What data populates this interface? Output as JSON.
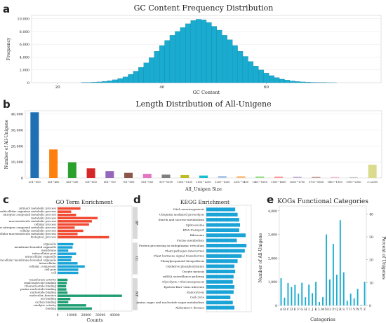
{
  "panels": {
    "a": "a",
    "b": "b",
    "c": "c",
    "d": "d",
    "e": "e"
  },
  "chart_data": [
    {
      "id": "gc",
      "type": "bar",
      "title": "GC Content Frequency Distribution",
      "xlabel": "GC Content",
      "ylabel": "Frequency",
      "xlim": [
        15,
        82
      ],
      "ylim": [
        0,
        10500
      ],
      "xticks": [
        "20",
        "40",
        "60"
      ],
      "yticks": [
        "0",
        "2,000",
        "4,000",
        "6,000",
        "8,000",
        "10,000"
      ],
      "color": "#1aacd0",
      "x": [
        25,
        26,
        27,
        28,
        29,
        30,
        31,
        32,
        33,
        34,
        35,
        36,
        37,
        38,
        39,
        40,
        41,
        42,
        43,
        44,
        45,
        46,
        47,
        48,
        49,
        50,
        51,
        52,
        53,
        54,
        55,
        56,
        57,
        58,
        59,
        60,
        61,
        62,
        63,
        64,
        65,
        66,
        67,
        68,
        69,
        70,
        71,
        72,
        73
      ],
      "values": [
        20,
        40,
        70,
        120,
        200,
        300,
        450,
        650,
        900,
        1300,
        1800,
        2400,
        3100,
        3900,
        4900,
        5800,
        6600,
        7400,
        8000,
        8600,
        9200,
        9700,
        9900,
        9800,
        9400,
        8800,
        8200,
        7400,
        6700,
        5800,
        4900,
        4100,
        3300,
        2600,
        2000,
        1500,
        1100,
        800,
        550,
        400,
        270,
        180,
        120,
        80,
        50,
        30,
        20,
        10,
        5
      ]
    },
    {
      "id": "length",
      "type": "bar",
      "title": "Length Distribution of All-Unigene",
      "xlabel": "All_Unigen Size",
      "ylabel": "Number of All-Unigene",
      "ylim": [
        0,
        42000
      ],
      "yticks": [
        "0",
        "10,000",
        "20,000",
        "30,000",
        "40,000"
      ],
      "categories": [
        "201~300",
        "301~400",
        "401~500",
        "501~600",
        "601~700",
        "701~800",
        "801~900",
        "901~1000",
        "1001~1100",
        "1101~1200",
        "1201~1300",
        "1301~1400",
        "1401~1500",
        "1501~1600",
        "1601~1700",
        "1701~1800",
        "1801~1900",
        "1901~2000",
        ">=2001"
      ],
      "values": [
        41000,
        17800,
        9800,
        6000,
        4300,
        3200,
        2600,
        2100,
        1800,
        1500,
        1300,
        1100,
        950,
        850,
        750,
        650,
        560,
        520,
        8300
      ],
      "colors": [
        "#1f6fb4",
        "#ff7f0e",
        "#2ca02c",
        "#d62728",
        "#9467bd",
        "#8c564b",
        "#e377c2",
        "#7f7f7f",
        "#bcbd22",
        "#17becf",
        "#aec7e8",
        "#ffbb78",
        "#98df8a",
        "#ff9896",
        "#c5b0d5",
        "#c49c94",
        "#f7b6d2",
        "#c7c7c7",
        "#dbdb8d"
      ]
    },
    {
      "id": "go",
      "type": "bar",
      "orientation": "horizontal",
      "title": "GO Term Enrichment",
      "xlabel": "Counts",
      "xlim": [
        0,
        52000
      ],
      "xticks": [
        "0",
        "10000",
        "20000",
        "30000",
        "40000"
      ],
      "xtick_values": [
        0,
        10000,
        20000,
        30000,
        40000
      ],
      "groups": [
        {
          "name": "BP",
          "color": "#f04a32",
          "terms": [
            {
              "label": "primary metabolic process",
              "value": 16000
            },
            {
              "label": "multicellular organism metabolic process",
              "value": 9500
            },
            {
              "label": "nitrogen compound metabolic process",
              "value": 13000
            },
            {
              "label": "metabolic process",
              "value": 28000
            },
            {
              "label": "macromolecule metabolic process",
              "value": 24000
            },
            {
              "label": "cellular process",
              "value": 22000
            },
            {
              "label": "cellular nitrogen compound metabolic process",
              "value": 12000
            },
            {
              "label": "cellular metabolic process",
              "value": 18000
            },
            {
              "label": "cellular macromolecule metabolic process",
              "value": 14000
            },
            {
              "label": "biological_process",
              "value": 36000
            }
          ]
        },
        {
          "name": "CC",
          "color": "#1aa3d6",
          "terms": [
            {
              "label": "organelle",
              "value": 11000
            },
            {
              "label": "membrane-bounded organelle",
              "value": 10500
            },
            {
              "label": "membrane",
              "value": 7500
            },
            {
              "label": "intracellular part",
              "value": 13000
            },
            {
              "label": "intracellular organelle",
              "value": 10000
            },
            {
              "label": "intracellular membrane-bounded organelle",
              "value": 9500
            },
            {
              "label": "intracellular",
              "value": 14000
            },
            {
              "label": "cellular_component",
              "value": 19000
            },
            {
              "label": "cell part",
              "value": 14500
            },
            {
              "label": "cell",
              "value": 14500
            }
          ]
        },
        {
          "name": "MF",
          "color": "#1f9e73",
          "terms": [
            {
              "label": "transferase activity",
              "value": 7000
            },
            {
              "label": "small molecule binding",
              "value": 6500
            },
            {
              "label": "ribonucleotide binding",
              "value": 6000
            },
            {
              "label": "purine nucleotide binding",
              "value": 6200
            },
            {
              "label": "nucleotide binding",
              "value": 7000
            },
            {
              "label": "molecular_function",
              "value": 45000
            },
            {
              "label": "ion binding",
              "value": 9000
            },
            {
              "label": "carbon binding",
              "value": 7500
            },
            {
              "label": "catalytic activity",
              "value": 20000
            },
            {
              "label": "binding",
              "value": 24000
            }
          ]
        }
      ]
    },
    {
      "id": "kegg",
      "type": "bar",
      "orientation": "horizontal",
      "title": "KEGG Enrichment",
      "xlim": [
        0,
        1.12
      ],
      "color": "#1aa3d6",
      "categories": [
        "Vital cancrinogenesis",
        "Ubiquitin mediated proteolysis",
        "Starch and sucrose metabolism",
        "Spliceosome",
        "RNA transport",
        "Ribosome",
        "Purine metabolism",
        "Protein processing in endoplasmic reticulum",
        "Plant-pathogen interaction",
        "Plant hormone signal transduction",
        "Phenylpropanoid biosynthesis",
        "Oxidative phosphorylation",
        "Oocyte meiosis",
        "mRNA surveillance pathway",
        "Glycolysis / Gluconeogenesis",
        "Epstein-Barr virus infection",
        "Endocytosis",
        "Cell cycle",
        "Amino sugar and nucleotide sugar metabolism",
        "Alzheimer's disease"
      ],
      "values": [
        0.72,
        0.78,
        0.82,
        0.84,
        0.82,
        0.98,
        0.76,
        1.0,
        0.96,
        0.88,
        0.78,
        0.7,
        0.72,
        0.68,
        0.66,
        0.7,
        0.68,
        0.6,
        0.66,
        0.7
      ]
    },
    {
      "id": "kog",
      "type": "bar",
      "title": "KOGs Functional Categories",
      "xlabel": "Categories",
      "ylabel": "Number of All-Unigene",
      "ylabel_right": "Percent of Unigenes",
      "ylim": [
        0,
        4200
      ],
      "yticks": [
        "0",
        "1,000",
        "2,000",
        "3,000",
        "4,000"
      ],
      "yticks_right": [
        "0",
        "10",
        "20",
        "30",
        "40"
      ],
      "color": "#1aacd0",
      "categories": [
        "A",
        "B",
        "C",
        "D",
        "E",
        "F",
        "G",
        "H",
        "I",
        "J",
        "K",
        "L",
        "M",
        "N",
        "O",
        "P",
        "Q",
        "R",
        "S",
        "T",
        "U",
        "V",
        "W",
        "Y",
        "Z"
      ],
      "values": [
        1150,
        330,
        950,
        780,
        870,
        500,
        960,
        350,
        880,
        520,
        1000,
        150,
        350,
        3000,
        1100,
        2600,
        1300,
        3600,
        1400,
        200,
        500,
        300,
        700,
        30,
        1000
      ]
    }
  ]
}
